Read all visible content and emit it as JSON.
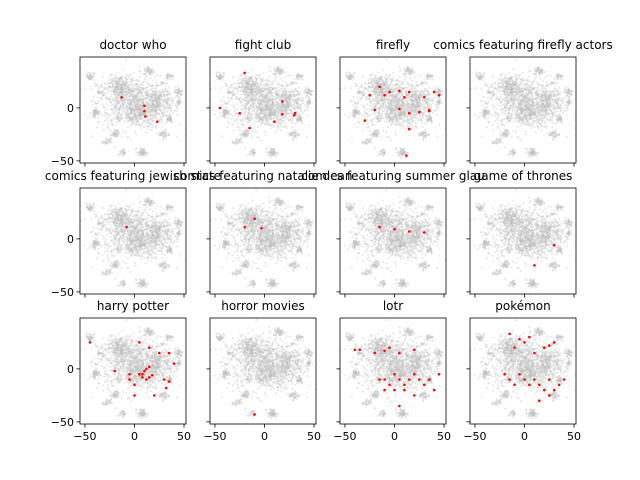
{
  "chart_data": {
    "type": "scatter",
    "layout": {
      "rows": 3,
      "cols": 4,
      "sharex": true,
      "sharey": true
    },
    "xlim": [
      -55,
      52
    ],
    "ylim": [
      -52,
      48
    ],
    "xticks": [
      -50,
      0,
      50
    ],
    "yticks": [
      -50,
      0
    ],
    "xtick_labels": [
      "−50",
      "0",
      "50"
    ],
    "ytick_labels": [
      "−50",
      "0"
    ],
    "background_color": "#c0c0c0",
    "highlight_color": "#ff0000",
    "background_clusters": [
      {
        "cx": 0,
        "cy": 5,
        "rx": 38,
        "ry": 25,
        "n": 900
      },
      {
        "cx": -15,
        "cy": 20,
        "rx": 12,
        "ry": 10,
        "n": 180
      },
      {
        "cx": 25,
        "cy": 5,
        "rx": 14,
        "ry": 14,
        "n": 180
      },
      {
        "cx": 5,
        "cy": -5,
        "rx": 16,
        "ry": 10,
        "n": 160
      },
      {
        "cx": -45,
        "cy": 30,
        "rx": 4,
        "ry": 4,
        "n": 40
      },
      {
        "cx": -40,
        "cy": -5,
        "rx": 4,
        "ry": 4,
        "n": 45
      },
      {
        "cx": -20,
        "cy": -25,
        "rx": 5,
        "ry": 4,
        "n": 40
      },
      {
        "cx": -28,
        "cy": -32,
        "rx": 4,
        "ry": 3,
        "n": 25
      },
      {
        "cx": 8,
        "cy": -42,
        "rx": 5,
        "ry": 4,
        "n": 60
      },
      {
        "cx": -12,
        "cy": -42,
        "rx": 3,
        "ry": 3,
        "n": 25
      },
      {
        "cx": 30,
        "cy": -25,
        "rx": 5,
        "ry": 4,
        "n": 40
      },
      {
        "cx": 35,
        "cy": -10,
        "rx": 4,
        "ry": 4,
        "n": 35
      },
      {
        "cx": 45,
        "cy": 15,
        "rx": 4,
        "ry": 5,
        "n": 35
      },
      {
        "cx": 45,
        "cy": 5,
        "rx": 3,
        "ry": 3,
        "n": 20
      },
      {
        "cx": 15,
        "cy": 35,
        "rx": 6,
        "ry": 4,
        "n": 45
      },
      {
        "cx": 35,
        "cy": 30,
        "rx": 4,
        "ry": 3,
        "n": 25
      },
      {
        "cx": -35,
        "cy": 15,
        "rx": 3,
        "ry": 3,
        "n": 20
      }
    ],
    "panels": [
      {
        "title": "doctor who",
        "points": [
          [
            -13,
            10
          ],
          [
            10,
            2
          ],
          [
            10,
            -3
          ],
          [
            11,
            -8
          ],
          [
            23,
            -13
          ]
        ]
      },
      {
        "title": "fight club",
        "points": [
          [
            -20,
            33
          ],
          [
            -45,
            0
          ],
          [
            -25,
            -5
          ],
          [
            -15,
            -19
          ],
          [
            18,
            6
          ],
          [
            18,
            -6
          ],
          [
            10,
            -13
          ],
          [
            31,
            -5
          ],
          [
            30,
            -7
          ]
        ]
      },
      {
        "title": "firefly",
        "points": [
          [
            -25,
            12
          ],
          [
            -15,
            20
          ],
          [
            -10,
            12
          ],
          [
            -5,
            15
          ],
          [
            5,
            16
          ],
          [
            10,
            10
          ],
          [
            15,
            15
          ],
          [
            30,
            10
          ],
          [
            35,
            -3
          ],
          [
            40,
            15
          ],
          [
            -30,
            -12
          ],
          [
            -20,
            -2
          ],
          [
            5,
            -1
          ],
          [
            15,
            -5
          ],
          [
            25,
            -4
          ],
          [
            35,
            -2
          ],
          [
            15,
            -20
          ],
          [
            12,
            -45
          ],
          [
            45,
            12
          ]
        ]
      },
      {
        "title": "comics featuring firefly actors",
        "points": []
      },
      {
        "title": "comics featuring jewish state",
        "points": [
          [
            -8,
            11
          ]
        ]
      },
      {
        "title": "comics featuring natalie dean",
        "points": [
          [
            -20,
            11
          ],
          [
            -10,
            19
          ],
          [
            -3,
            10
          ]
        ]
      },
      {
        "title": "comics featuring summer glau",
        "points": [
          [
            -15,
            11
          ],
          [
            0,
            9
          ],
          [
            15,
            7
          ],
          [
            30,
            6
          ]
        ]
      },
      {
        "title": "game of thrones",
        "points": [
          [
            30,
            -6
          ],
          [
            10,
            -25
          ]
        ]
      },
      {
        "title": "harry potter",
        "points": [
          [
            -45,
            25
          ],
          [
            -20,
            -2
          ],
          [
            5,
            25
          ],
          [
            15,
            20
          ],
          [
            25,
            15
          ],
          [
            35,
            15
          ],
          [
            40,
            5
          ],
          [
            -5,
            -10
          ],
          [
            0,
            -15
          ],
          [
            5,
            -5
          ],
          [
            10,
            -2
          ],
          [
            12,
            0
          ],
          [
            15,
            2
          ],
          [
            8,
            -8
          ],
          [
            12,
            -10
          ],
          [
            30,
            -10
          ],
          [
            35,
            -12
          ],
          [
            32,
            -18
          ],
          [
            20,
            -25
          ],
          [
            -5,
            -5
          ],
          [
            0,
            -25
          ],
          [
            8,
            -5
          ],
          [
            18,
            -6
          ],
          [
            15,
            -8
          ]
        ]
      },
      {
        "title": "horror movies",
        "points": [
          [
            -10,
            -43
          ]
        ]
      },
      {
        "title": "lotr",
        "points": [
          [
            -40,
            18
          ],
          [
            -35,
            18
          ],
          [
            -20,
            15
          ],
          [
            -10,
            17
          ],
          [
            -5,
            20
          ],
          [
            5,
            15
          ],
          [
            20,
            18
          ],
          [
            -15,
            -10
          ],
          [
            -10,
            -10
          ],
          [
            -5,
            -15
          ],
          [
            0,
            -5
          ],
          [
            5,
            -10
          ],
          [
            10,
            -15
          ],
          [
            15,
            -10
          ],
          [
            -10,
            -20
          ],
          [
            0,
            -20
          ],
          [
            10,
            -20
          ],
          [
            20,
            -5
          ],
          [
            25,
            -10
          ],
          [
            30,
            -15
          ],
          [
            35,
            -10
          ],
          [
            40,
            -20
          ],
          [
            45,
            -5
          ],
          [
            20,
            -25
          ],
          [
            5,
            -35
          ]
        ]
      },
      {
        "title": "pokémon",
        "points": [
          [
            -15,
            33
          ],
          [
            -10,
            20
          ],
          [
            -5,
            28
          ],
          [
            0,
            25
          ],
          [
            5,
            30
          ],
          [
            10,
            15
          ],
          [
            20,
            20
          ],
          [
            25,
            22
          ],
          [
            30,
            25
          ],
          [
            -20,
            -5
          ],
          [
            -15,
            -10
          ],
          [
            -10,
            -15
          ],
          [
            -5,
            -5
          ],
          [
            0,
            -10
          ],
          [
            5,
            -15
          ],
          [
            10,
            -10
          ],
          [
            15,
            -15
          ],
          [
            20,
            -20
          ],
          [
            25,
            -10
          ],
          [
            30,
            -20
          ],
          [
            35,
            -15
          ],
          [
            40,
            -10
          ],
          [
            25,
            -25
          ],
          [
            15,
            -30
          ]
        ]
      }
    ]
  }
}
